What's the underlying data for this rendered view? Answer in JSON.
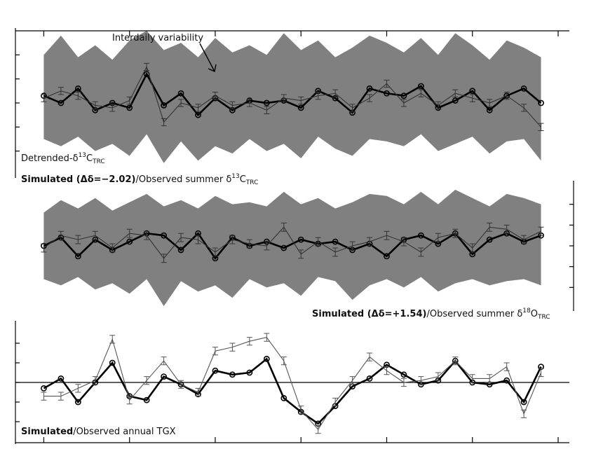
{
  "chart_data": [
    {
      "type": "line",
      "annotation": "Interdaily variability",
      "caption": {
        "text": "Detrended-δ",
        "sup": "13",
        "base": "C",
        "sub": "TRC"
      },
      "caption2": {
        "bold": "Simulated (Δδ=−2.02)",
        "text": "/Observed summer δ",
        "sup": "13",
        "base": "C",
        "sub": "TRC"
      },
      "x": [
        1,
        2,
        3,
        4,
        5,
        6,
        7,
        8,
        9,
        10,
        11,
        12,
        13,
        14,
        15,
        16,
        17,
        18,
        19,
        20,
        21,
        22,
        23,
        24,
        25,
        26,
        27,
        28,
        29,
        30
      ],
      "xlim": [
        0,
        31
      ],
      "xticks": [
        1,
        6,
        11,
        16,
        21,
        26,
        31
      ],
      "ylim": [
        -3,
        3
      ],
      "yticks": [
        -2,
        -1,
        0,
        1,
        2
      ],
      "y_axis_side": "left",
      "error": 0.15,
      "band_low": [
        -1.5,
        -1.8,
        -1.4,
        -2.0,
        -1.7,
        -2.2,
        -1.3,
        -2.5,
        -1.6,
        -2.4,
        -1.8,
        -2.1,
        -1.5,
        -2.0,
        -1.7,
        -2.3,
        -1.4,
        -1.9,
        -2.2,
        -1.5,
        -1.6,
        -1.8,
        -1.3,
        -2.0,
        -1.7,
        -1.4,
        -2.1,
        -1.6,
        -1.5,
        -2.4
      ],
      "band_high": [
        2.0,
        2.8,
        1.9,
        2.4,
        1.8,
        2.6,
        3.0,
        2.2,
        2.5,
        1.9,
        2.7,
        2.1,
        2.4,
        2.0,
        2.9,
        2.2,
        2.6,
        1.9,
        2.3,
        2.8,
        2.5,
        2.1,
        2.7,
        2.0,
        2.9,
        2.4,
        1.8,
        2.6,
        2.3,
        1.9
      ],
      "series": [
        {
          "name": "Simulated",
          "color": "#000000",
          "values": [
            0.3,
            0.0,
            0.6,
            -0.3,
            0.0,
            -0.2,
            1.2,
            -0.1,
            0.4,
            -0.5,
            0.2,
            -0.3,
            0.1,
            0.0,
            0.1,
            -0.2,
            0.5,
            0.2,
            -0.4,
            0.6,
            0.4,
            0.3,
            0.7,
            -0.2,
            0.1,
            0.5,
            -0.3,
            0.3,
            0.6,
            0.0
          ]
        },
        {
          "name": "Observed",
          "color": "#333333",
          "values": [
            0.2,
            0.5,
            0.3,
            -0.1,
            -0.2,
            0.1,
            1.5,
            -0.8,
            0.0,
            -0.2,
            0.3,
            -0.1,
            0.0,
            -0.3,
            0.2,
            0.1,
            0.3,
            0.4,
            -0.2,
            0.2,
            0.8,
            0.0,
            0.4,
            -0.1,
            0.4,
            0.2,
            0.0,
            0.3,
            -0.2,
            -1.0
          ]
        }
      ]
    },
    {
      "type": "line",
      "caption2": {
        "bold": "Simulated (Δδ=+1.54)",
        "text": "/Observed summer δ",
        "sup": "18",
        "base": "O",
        "sub": "TRC"
      },
      "x": [
        1,
        2,
        3,
        4,
        5,
        6,
        7,
        8,
        9,
        10,
        11,
        12,
        13,
        14,
        15,
        16,
        17,
        18,
        19,
        20,
        21,
        22,
        23,
        24,
        25,
        26,
        27,
        28,
        29,
        30
      ],
      "xlim": [
        0,
        31
      ],
      "xticks": [
        1,
        6,
        11,
        16,
        21,
        26,
        31
      ],
      "ylim": [
        -3,
        3
      ],
      "yticks": [
        -2,
        -1,
        0,
        1,
        2
      ],
      "y_axis_side": "right",
      "error": 0.2,
      "band_low": [
        -1.6,
        -1.9,
        -1.5,
        -2.1,
        -1.8,
        -2.3,
        -1.6,
        -2.9,
        -1.7,
        -2.2,
        -1.9,
        -2.5,
        -1.6,
        -2.0,
        -1.8,
        -2.4,
        -1.5,
        -1.7,
        -2.6,
        -1.9,
        -1.6,
        -2.0,
        -1.5,
        -2.2,
        -1.8,
        -1.6,
        -1.9,
        -1.7,
        -1.6,
        -1.9
      ],
      "band_high": [
        1.6,
        2.2,
        1.8,
        2.3,
        1.7,
        2.1,
        2.5,
        1.9,
        2.2,
        1.8,
        2.4,
        2.0,
        2.1,
        1.9,
        2.6,
        2.0,
        2.3,
        1.8,
        2.1,
        2.5,
        2.4,
        2.0,
        2.6,
        2.0,
        2.7,
        2.3,
        1.9,
        2.5,
        2.3,
        2.0
      ],
      "series": [
        {
          "name": "Simulated",
          "color": "#000000",
          "values": [
            0.0,
            0.4,
            -0.5,
            0.3,
            -0.2,
            0.2,
            0.6,
            0.5,
            -0.2,
            0.6,
            -0.6,
            0.4,
            0.0,
            0.2,
            -0.1,
            0.3,
            0.1,
            0.2,
            -0.2,
            0.1,
            -0.5,
            0.3,
            0.5,
            0.1,
            0.6,
            -0.4,
            0.3,
            0.6,
            0.2,
            0.5
          ]
        },
        {
          "name": "Observed",
          "color": "#333333",
          "values": [
            -0.1,
            0.5,
            0.3,
            0.5,
            -0.1,
            0.6,
            0.5,
            -0.6,
            0.4,
            0.3,
            -0.3,
            0.3,
            0.1,
            0.0,
            0.9,
            -0.4,
            0.2,
            -0.3,
            0.0,
            0.2,
            0.5,
            0.2,
            -0.3,
            0.4,
            0.6,
            -0.1,
            0.9,
            0.8,
            0.3,
            0.7
          ]
        }
      ]
    },
    {
      "type": "line",
      "caption2": {
        "bold": "Simulated",
        "text": "/Observed annual TGX"
      },
      "x": [
        1,
        2,
        3,
        4,
        5,
        6,
        7,
        8,
        9,
        10,
        11,
        12,
        13,
        14,
        15,
        16,
        17,
        18,
        19,
        20,
        21,
        22,
        23,
        24,
        25,
        26,
        27,
        28,
        29,
        30
      ],
      "xlim": [
        0,
        31
      ],
      "xticks": [
        1,
        6,
        11,
        16,
        21,
        26,
        31
      ],
      "ylim": [
        -3,
        3
      ],
      "yticks": [
        -2,
        -1,
        0,
        1,
        2
      ],
      "y_axis_side": "left",
      "error": 0.2,
      "zero_line": true,
      "series": [
        {
          "name": "Simulated",
          "color": "#000000",
          "values": [
            -0.3,
            0.2,
            -1.0,
            0.0,
            1.0,
            -0.7,
            -0.9,
            0.3,
            -0.1,
            -0.6,
            0.6,
            0.4,
            0.5,
            1.2,
            -0.8,
            -1.5,
            -2.1,
            -1.2,
            -0.2,
            0.2,
            0.9,
            0.4,
            -0.1,
            0.1,
            1.1,
            0.0,
            -0.1,
            0.1,
            -1.0,
            0.8
          ]
        },
        {
          "name": "Observed",
          "color": "#555555",
          "values": [
            -0.7,
            -0.7,
            -0.3,
            0.1,
            2.2,
            -0.9,
            0.1,
            1.1,
            -0.1,
            -0.5,
            1.6,
            1.8,
            2.1,
            2.3,
            1.1,
            -1.4,
            -2.4,
            -1.0,
            0.1,
            1.3,
            0.6,
            0.0,
            0.1,
            0.3,
            1.1,
            0.2,
            0.2,
            0.8,
            -1.6,
            0.5
          ]
        }
      ]
    }
  ]
}
